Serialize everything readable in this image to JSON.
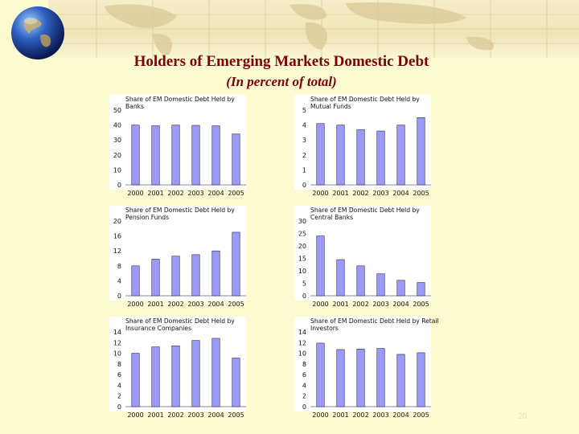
{
  "title": "Holders of Emerging Markets Domestic Debt",
  "subtitle": "(In percent of total)",
  "page_number": "20",
  "colors": {
    "bar": "#9b9bf7",
    "bar_edge": "#2a2a55",
    "title": "#7a0000"
  },
  "chart_data": [
    {
      "type": "bar",
      "title": "Share of EM Domestic Debt Held by Banks",
      "categories": [
        "2000",
        "2001",
        "2002",
        "2003",
        "2004",
        "2005"
      ],
      "values": [
        40,
        39.5,
        40,
        39.8,
        39.5,
        34
      ],
      "ylim": [
        0,
        50
      ],
      "yticks": [
        0,
        10,
        20,
        30,
        40,
        50
      ],
      "grid": false
    },
    {
      "type": "bar",
      "title": "Share of EM Domestic Debt Held by Mutual Funds",
      "categories": [
        "2000",
        "2001",
        "2002",
        "2003",
        "2004",
        "2005"
      ],
      "values": [
        4.1,
        4.0,
        3.7,
        3.6,
        4.0,
        4.5
      ],
      "ylim": [
        0,
        5
      ],
      "yticks": [
        0,
        1,
        2,
        3,
        4,
        5
      ],
      "grid": false
    },
    {
      "type": "bar",
      "title": "Share of EM Domestic Debt Held by Pension Funds",
      "categories": [
        "2000",
        "2001",
        "2002",
        "2003",
        "2004",
        "2005"
      ],
      "values": [
        8,
        9.8,
        10.6,
        11,
        12,
        17
      ],
      "ylim": [
        0,
        20
      ],
      "yticks": [
        0,
        4,
        8,
        12,
        16,
        20
      ],
      "grid": false
    },
    {
      "type": "bar",
      "title": "Share of EM Domestic Debt Held by Central Banks",
      "categories": [
        "2000",
        "2001",
        "2002",
        "2003",
        "2004",
        "2005"
      ],
      "values": [
        24,
        14.5,
        12,
        8.8,
        6.2,
        5.3
      ],
      "ylim": [
        0,
        30
      ],
      "yticks": [
        0,
        5,
        10,
        15,
        20,
        25,
        30
      ],
      "grid": false
    },
    {
      "type": "bar",
      "title": "Share of EM Domestic Debt Held by Insurance Companies",
      "categories": [
        "2000",
        "2001",
        "2002",
        "2003",
        "2004",
        "2005"
      ],
      "values": [
        10,
        11.2,
        11.4,
        12.4,
        12.8,
        9.1
      ],
      "ylim": [
        0,
        14
      ],
      "yticks": [
        0,
        2,
        4,
        6,
        8,
        10,
        12,
        14
      ],
      "grid": false
    },
    {
      "type": "bar",
      "title": "Share of EM Domestic Debt Held by Retail Investors",
      "categories": [
        "2000",
        "2001",
        "2002",
        "2003",
        "2004",
        "2005"
      ],
      "values": [
        11.9,
        10.7,
        10.8,
        10.9,
        9.8,
        10.1
      ],
      "ylim": [
        0,
        14
      ],
      "yticks": [
        0,
        2,
        4,
        6,
        8,
        10,
        12,
        14
      ],
      "grid": false
    }
  ]
}
